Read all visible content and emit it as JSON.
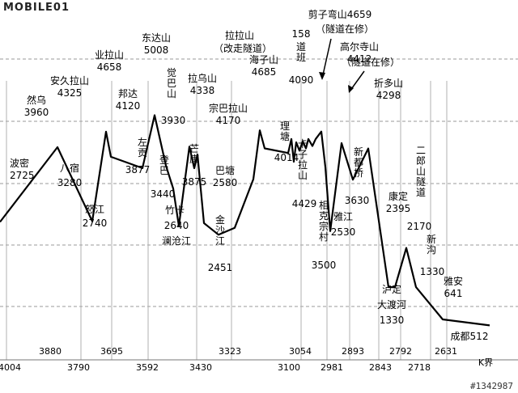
{
  "brand": {
    "logo": "MOBILE01"
  },
  "watermark": "#1342987",
  "chart_data": {
    "type": "line",
    "title": "",
    "xlabel": "K界",
    "ylabel": "",
    "x_tick_labels": [
      "4004",
      "3880",
      "3790",
      "3695",
      "3592",
      "3430",
      "3323",
      "3100",
      "3054",
      "2981",
      "2893",
      "2843",
      "2792",
      "2718",
      "2631"
    ],
    "peaks": [
      {
        "name": "波密",
        "elev": 2725
      },
      {
        "name": "然乌",
        "elev": 3960
      },
      {
        "name": "安久拉山",
        "elev": 4325
      },
      {
        "name": "八宿",
        "elev": 3280
      },
      {
        "name": "怒江",
        "elev": 2740
      },
      {
        "name": "业拉山",
        "elev": 4658
      },
      {
        "name": "邦达",
        "elev": 4120
      },
      {
        "name": "左贡",
        "elev": 3877
      },
      {
        "name": "东达山",
        "elev": 5008
      },
      {
        "name": "觉巴山",
        "elev": 3930
      },
      {
        "name": "登巴",
        "elev": 3440
      },
      {
        "name": "竹卡",
        "elev": 2640
      },
      {
        "name": "澜沧江",
        "elev": null
      },
      {
        "name": "拉乌山",
        "elev": 4338
      },
      {
        "name": "芒康",
        "elev": 3875
      },
      {
        "name": "宗巴拉山",
        "elev": 4170
      },
      {
        "name": "巴塘",
        "elev": 2580
      },
      {
        "name": "金沙江",
        "elev": 2451
      },
      {
        "name": "拉拉山（改走隧道）",
        "elev": null
      },
      {
        "name": "海子山",
        "elev": 4685
      },
      {
        "name": "理塘",
        "elev": 4014
      },
      {
        "name": "卡子拉山",
        "elev": 4429
      },
      {
        "name": "道班",
        "elev": 4090
      },
      {
        "name": "剪子弯山",
        "elev": 4659
      },
      {
        "name": "相克宗村",
        "elev": 3500
      },
      {
        "name": "雅江",
        "elev": 2530
      },
      {
        "name": "高尔寺山",
        "elev": 4412
      },
      {
        "name": "新都桥",
        "elev": 3630
      },
      {
        "name": "折多山",
        "elev": 4298
      },
      {
        "name": "康定",
        "elev": 2395
      },
      {
        "name": "泸定大渡河",
        "elev": 1330
      },
      {
        "name": "二郎山隧道",
        "elev": 2170
      },
      {
        "name": "新沟",
        "elev": 1330
      },
      {
        "name": "雅安",
        "elev": 641
      },
      {
        "name": "成都",
        "elev": 512
      }
    ],
    "annotations": [
      "隧道在修",
      "隧道在修",
      "158"
    ],
    "grid": true,
    "line_color": "#000000"
  }
}
